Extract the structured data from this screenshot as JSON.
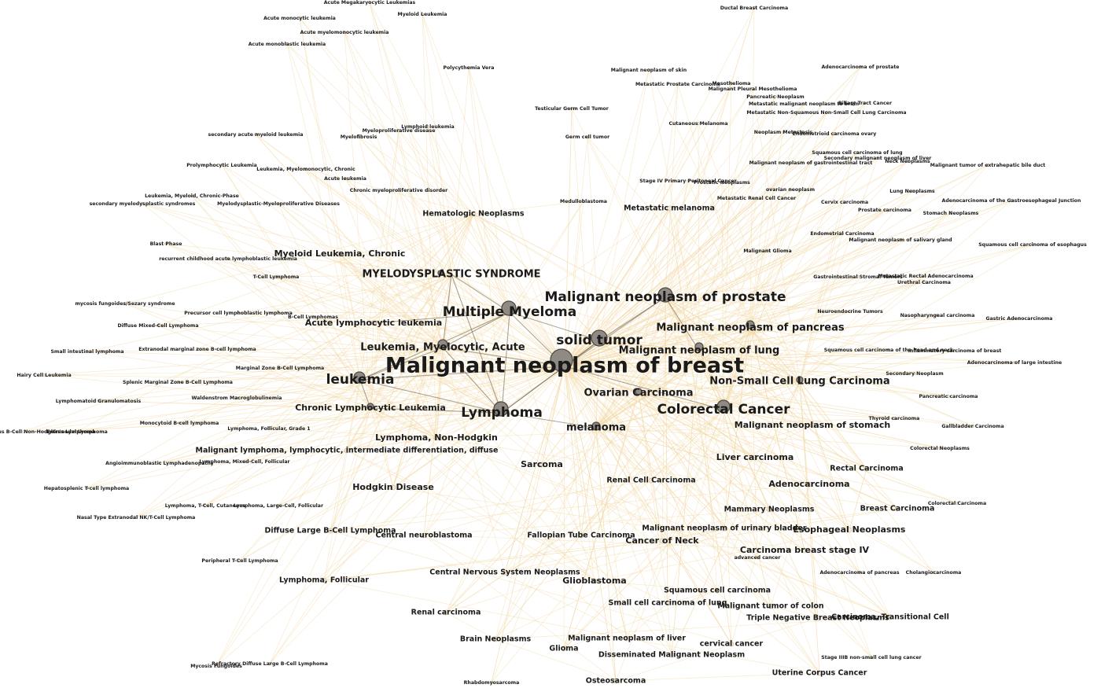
{
  "graph": {
    "edge_color": "#f2d8a6",
    "strong_edge_color": "#6b6454",
    "node_fill": "#8f8a83",
    "hub": "Malignant neoplasm of breast",
    "nodes": [
      {
        "label": "Malignant neoplasm of breast",
        "tier": 1,
        "size": 18
      },
      {
        "label": "solid tumor",
        "tier": 2,
        "size": 12
      },
      {
        "label": "Lymphoma",
        "tier": 2,
        "size": 10
      },
      {
        "label": "Multiple Myeloma",
        "tier": 2,
        "size": 10
      },
      {
        "label": "Malignant neoplasm of prostate",
        "tier": 2,
        "size": 10
      },
      {
        "label": "Colorectal Cancer",
        "tier": 2,
        "size": 9
      },
      {
        "label": "leukemia",
        "tier": 2,
        "size": 8
      },
      {
        "label": "Leukemia, Myelocytic, Acute",
        "tier": 3,
        "size": 7
      },
      {
        "label": "MYELODYSPLASTIC SYNDROME",
        "tier": 3,
        "size": 4
      },
      {
        "label": "Malignant neoplasm of pancreas",
        "tier": 3,
        "size": 5
      },
      {
        "label": "Malignant neoplasm of lung",
        "tier": 3,
        "size": 6
      },
      {
        "label": "Non-Small Cell Lung Carcinoma",
        "tier": 3,
        "size": 5
      },
      {
        "label": "Ovarian Carcinoma",
        "tier": 3,
        "size": 4
      },
      {
        "label": "melanoma",
        "tier": 3,
        "size": 5
      },
      {
        "label": "Chronic Lymphocytic Leukemia",
        "tier": 4,
        "size": 4
      },
      {
        "label": "Acute lymphocytic leukemia",
        "tier": 4,
        "size": 3
      },
      {
        "label": "Lymphoma, Non-Hodgkin",
        "tier": 4,
        "size": 3
      },
      {
        "label": "Malignant neoplasm of stomach",
        "tier": 4,
        "size": 3
      },
      {
        "label": "Myeloid Leukemia, Chronic",
        "tier": 4,
        "size": 3
      },
      {
        "label": "Liver carcinoma",
        "tier": 4,
        "size": 3
      },
      {
        "label": "Sarcoma",
        "tier": 4,
        "size": 3
      },
      {
        "label": "Hodgkin Disease",
        "tier": 4,
        "size": 3
      },
      {
        "label": "Glioblastoma",
        "tier": 4,
        "size": 3
      },
      {
        "label": "Cancer of Neck",
        "tier": 4,
        "size": 3
      },
      {
        "label": "Adenocarcinoma",
        "tier": 4,
        "size": 3
      },
      {
        "label": "Esophageal Neoplasms",
        "tier": 4,
        "size": 3
      },
      {
        "label": "Carcinoma breast stage IV",
        "tier": 4,
        "size": 3
      },
      {
        "label": "Metastatic melanoma",
        "tier": 5,
        "size": 2
      },
      {
        "label": "Hematologic Neoplasms",
        "tier": 5,
        "size": 2
      },
      {
        "label": "Malignant lymphoma, lymphocytic, intermediate differentiation, diffuse",
        "tier": 5,
        "size": 2
      },
      {
        "label": "Renal Cell Carcinoma",
        "tier": 5,
        "size": 2
      },
      {
        "label": "Mammary Neoplasms",
        "tier": 5,
        "size": 2
      },
      {
        "label": "Malignant neoplasm of urinary bladder",
        "tier": 5,
        "size": 2
      },
      {
        "label": "Fallopian Tube Carcinoma",
        "tier": 5,
        "size": 2
      },
      {
        "label": "Central neuroblastoma",
        "tier": 5,
        "size": 2
      },
      {
        "label": "Diffuse Large B-Cell Lymphoma",
        "tier": 5,
        "size": 2
      },
      {
        "label": "Central Nervous System Neoplasms",
        "tier": 5,
        "size": 2
      },
      {
        "label": "Squamous cell carcinoma",
        "tier": 5,
        "size": 2
      },
      {
        "label": "Small cell carcinoma of lung",
        "tier": 5,
        "size": 2
      },
      {
        "label": "Malignant tumor of colon",
        "tier": 5,
        "size": 2
      },
      {
        "label": "Triple Negative Breast Neoplasms",
        "tier": 5,
        "size": 2
      },
      {
        "label": "Carcinoma, Transitional Cell",
        "tier": 5,
        "size": 2
      },
      {
        "label": "cervical cancer",
        "tier": 5,
        "size": 2
      },
      {
        "label": "Disseminated Malignant Neoplasm",
        "tier": 5,
        "size": 2
      },
      {
        "label": "Brain Neoplasms",
        "tier": 5,
        "size": 2
      },
      {
        "label": "Malignant neoplasm of liver",
        "tier": 5,
        "size": 2
      },
      {
        "label": "Rectal Carcinoma",
        "tier": 5,
        "size": 2
      },
      {
        "label": "Breast Carcinoma",
        "tier": 5,
        "size": 2
      },
      {
        "label": "Lymphoma, Follicular",
        "tier": 5,
        "size": 2
      },
      {
        "label": "Renal carcinoma",
        "tier": 5,
        "size": 2
      },
      {
        "label": "Glioma",
        "tier": 5,
        "size": 2
      },
      {
        "label": "Osteosarcoma",
        "tier": 5,
        "size": 2
      },
      {
        "label": "Uterine Corpus Cancer",
        "tier": 5,
        "size": 2
      },
      {
        "label": "Acute Megakaryocytic Leukemias",
        "tier": 6,
        "size": 1
      },
      {
        "label": "Acute monocytic leukemia",
        "tier": 6,
        "size": 1
      },
      {
        "label": "Myeloid Leukemia",
        "tier": 6,
        "size": 1
      },
      {
        "label": "Acute myelomonocytic leukemia",
        "tier": 6,
        "size": 1
      },
      {
        "label": "Acute monoblastic leukemia",
        "tier": 6,
        "size": 1
      },
      {
        "label": "Polycythemia Vera",
        "tier": 6,
        "size": 1
      },
      {
        "label": "Ductal Breast Carcinoma",
        "tier": 6,
        "size": 1
      },
      {
        "label": "Adenocarcinoma of prostate",
        "tier": 6,
        "size": 1
      },
      {
        "label": "Malignant neoplasm of skin",
        "tier": 6,
        "size": 1
      },
      {
        "label": "Metastatic Prostate Carcinoma",
        "tier": 6,
        "size": 1
      },
      {
        "label": "Mesothelioma",
        "tier": 6,
        "size": 1
      },
      {
        "label": "Malignant Pleural Mesothelioma",
        "tier": 6,
        "size": 1
      },
      {
        "label": "Pancreatic Neoplasm",
        "tier": 6,
        "size": 1
      },
      {
        "label": "Metastatic malignant neoplasm to brain",
        "tier": 6,
        "size": 1
      },
      {
        "label": "Biliary Tract Cancer",
        "tier": 6,
        "size": 1
      },
      {
        "label": "Metastatic Non-Squamous Non-Small Cell Lung Carcinoma",
        "tier": 6,
        "size": 1
      },
      {
        "label": "Testicular Germ Cell Tumor",
        "tier": 6,
        "size": 1
      },
      {
        "label": "Cutaneous Melanoma",
        "tier": 6,
        "size": 1
      },
      {
        "label": "Neoplasm Metastasis",
        "tier": 6,
        "size": 1
      },
      {
        "label": "Endometrioid carcinoma ovary",
        "tier": 6,
        "size": 1
      },
      {
        "label": "Germ cell tumor",
        "tier": 6,
        "size": 1
      },
      {
        "label": "Lymphoid leukemia",
        "tier": 6,
        "size": 1
      },
      {
        "label": "Myeloproliferative disease",
        "tier": 6,
        "size": 1
      },
      {
        "label": "Myelofibrosis",
        "tier": 6,
        "size": 1
      },
      {
        "label": "secondary acute myeloid leukemia",
        "tier": 6,
        "size": 1
      },
      {
        "label": "Squamous cell carcinoma of lung",
        "tier": 6,
        "size": 1
      },
      {
        "label": "Secondary malignant neoplasm of liver",
        "tier": 6,
        "size": 1
      },
      {
        "label": "Neck Neoplasms",
        "tier": 6,
        "size": 1
      },
      {
        "label": "Malignant neoplasm of gastrointestinal tract",
        "tier": 6,
        "size": 1
      },
      {
        "label": "Malignant tumor of extrahepatic bile duct",
        "tier": 6,
        "size": 1
      },
      {
        "label": "Prolymphocytic Leukemia",
        "tier": 6,
        "size": 1
      },
      {
        "label": "Leukemia, Myelomonocytic, Chronic",
        "tier": 6,
        "size": 1
      },
      {
        "label": "Acute leukemia",
        "tier": 6,
        "size": 1
      },
      {
        "label": "Stage IV Primary Peritoneal Cancer",
        "tier": 6,
        "size": 1
      },
      {
        "label": "Prostatic Neoplasms",
        "tier": 6,
        "size": 1
      },
      {
        "label": "Chronic myeloproliferative disorder",
        "tier": 6,
        "size": 1
      },
      {
        "label": "ovarian neoplasm",
        "tier": 6,
        "size": 1
      },
      {
        "label": "Lung Neoplasms",
        "tier": 6,
        "size": 1
      },
      {
        "label": "Leukemia, Myeloid, Chronic-Phase",
        "tier": 6,
        "size": 1
      },
      {
        "label": "Medulloblastoma",
        "tier": 6,
        "size": 1
      },
      {
        "label": "Metastatic Renal Cell Cancer",
        "tier": 6,
        "size": 1
      },
      {
        "label": "Adenocarcinoma of the Gastroesophageal Junction",
        "tier": 6,
        "size": 1
      },
      {
        "label": "secondary myelodysplastic syndromes",
        "tier": 6,
        "size": 1
      },
      {
        "label": "Myelodysplastic-Myeloproliferative Diseases",
        "tier": 6,
        "size": 1
      },
      {
        "label": "Cervix carcinoma",
        "tier": 6,
        "size": 1
      },
      {
        "label": "Prostate carcinoma",
        "tier": 6,
        "size": 1
      },
      {
        "label": "Stomach Neoplasms",
        "tier": 6,
        "size": 1
      },
      {
        "label": "Endometrial Carcinoma",
        "tier": 6,
        "size": 1
      },
      {
        "label": "Blast Phase",
        "tier": 6,
        "size": 1
      },
      {
        "label": "Malignant neoplasm of salivary gland",
        "tier": 6,
        "size": 1
      },
      {
        "label": "Squamous cell carcinoma of esophagus",
        "tier": 6,
        "size": 1
      },
      {
        "label": "recurrent childhood acute lymphoblastic leukemia",
        "tier": 6,
        "size": 1
      },
      {
        "label": "Malignant Glioma",
        "tier": 6,
        "size": 1
      },
      {
        "label": "T-Cell Lymphoma",
        "tier": 6,
        "size": 1
      },
      {
        "label": "Gastrointestinal Stromal Tumors",
        "tier": 6,
        "size": 1
      },
      {
        "label": "Metastatic Rectal Adenocarcinoma",
        "tier": 6,
        "size": 1
      },
      {
        "label": "Urethral Carcinoma",
        "tier": 6,
        "size": 1
      },
      {
        "label": "mycosis fungoides/Sezary syndrome",
        "tier": 6,
        "size": 1
      },
      {
        "label": "Precursor cell lymphoblastic lymphoma",
        "tier": 6,
        "size": 1
      },
      {
        "label": "B-Cell Lymphomas",
        "tier": 6,
        "size": 1
      },
      {
        "label": "Neuroendocrine Tumors",
        "tier": 6,
        "size": 1
      },
      {
        "label": "Nasopharyngeal carcinoma",
        "tier": 6,
        "size": 1
      },
      {
        "label": "Gastric Adenocarcinoma",
        "tier": 6,
        "size": 1
      },
      {
        "label": "Diffuse Mixed-Cell Lymphoma",
        "tier": 6,
        "size": 1
      },
      {
        "label": "Small intestinal lymphoma",
        "tier": 6,
        "size": 1
      },
      {
        "label": "Extranodal marginal zone B-cell lymphoma",
        "tier": 6,
        "size": 1
      },
      {
        "label": "Squamous cell carcinoma of the head and neck",
        "tier": 6,
        "size": 1
      },
      {
        "label": "Inflammatory carcinoma of breast",
        "tier": 6,
        "size": 1
      },
      {
        "label": "Adenocarcinoma of large intestine",
        "tier": 6,
        "size": 1
      },
      {
        "label": "Marginal Zone B-Cell Lymphoma",
        "tier": 6,
        "size": 1
      },
      {
        "label": "Hairy Cell Leukemia",
        "tier": 6,
        "size": 1
      },
      {
        "label": "Secondary Neoplasm",
        "tier": 6,
        "size": 1
      },
      {
        "label": "Splenic Marginal Zone B-Cell Lymphoma",
        "tier": 6,
        "size": 1
      },
      {
        "label": "Waldenstrom Macroglobulinemia",
        "tier": 6,
        "size": 1
      },
      {
        "label": "Pancreatic carcinoma",
        "tier": 6,
        "size": 1
      },
      {
        "label": "Lymphomatoid Granulomatosis",
        "tier": 6,
        "size": 1
      },
      {
        "label": "Thyroid carcinoma",
        "tier": 6,
        "size": 1
      },
      {
        "label": "Monocytoid B-cell lymphoma",
        "tier": 6,
        "size": 1
      },
      {
        "label": "Gallbladder Carcinoma",
        "tier": 6,
        "size": 1
      },
      {
        "label": "Lymphoma, Follicular, Grade 1",
        "tier": 6,
        "size": 1
      },
      {
        "label": "Primary Cutaneous B-Cell Non-Hodgkin's Lymphoma",
        "tier": 6,
        "size": 1
      },
      {
        "label": "Extranodal Lymphoma",
        "tier": 6,
        "size": 1
      },
      {
        "label": "Colorectal Neoplasms",
        "tier": 6,
        "size": 1
      },
      {
        "label": "Angioimmunoblastic Lymphadenopathy",
        "tier": 6,
        "size": 1
      },
      {
        "label": "Lymphoma, Mixed-Cell, Follicular",
        "tier": 6,
        "size": 1
      },
      {
        "label": "Hepatosplenic T-cell lymphoma",
        "tier": 6,
        "size": 1
      },
      {
        "label": "Lymphoma, T-Cell, Cutaneous",
        "tier": 6,
        "size": 1
      },
      {
        "label": "Lymphoma, Large-Cell, Follicular",
        "tier": 6,
        "size": 1
      },
      {
        "label": "Colorectal Carcinoma",
        "tier": 6,
        "size": 1
      },
      {
        "label": "Nasal Type Extranodal NK/T-Cell Lymphoma",
        "tier": 6,
        "size": 1
      },
      {
        "label": "advanced cancer",
        "tier": 6,
        "size": 1
      },
      {
        "label": "Peripheral T-Cell Lymphoma",
        "tier": 6,
        "size": 1
      },
      {
        "label": "Adenocarcinoma of pancreas",
        "tier": 6,
        "size": 1
      },
      {
        "label": "Cholangiocarcinoma",
        "tier": 6,
        "size": 1
      },
      {
        "label": "Mycosis Fungoides",
        "tier": 6,
        "size": 1
      },
      {
        "label": "Refractory Diffuse Large B-Cell Lymphoma",
        "tier": 6,
        "size": 1
      },
      {
        "label": "Stage IIIB non-small cell lung cancer",
        "tier": 6,
        "size": 1
      },
      {
        "label": "Rhabdomyosarcoma",
        "tier": 6,
        "size": 1
      }
    ]
  }
}
